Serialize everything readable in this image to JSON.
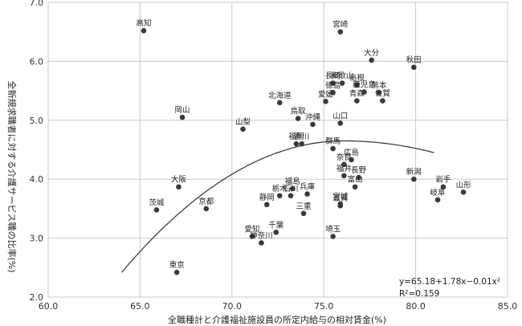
{
  "chart_data": {
    "type": "scatter",
    "xlabel": "全職種計と介護福祉施設員の所定内給与の相対賃金(%)",
    "ylabel": "全新規求職者に対する介護サービス職の比率(%)",
    "xlim": [
      60.0,
      85.0
    ],
    "ylim": [
      2.0,
      7.0
    ],
    "xticks": [
      "60.0",
      "65.0",
      "70.0",
      "75.0",
      "80.0",
      "85.0"
    ],
    "yticks": [
      "2.0",
      "3.0",
      "4.0",
      "5.0",
      "6.0",
      "7.0"
    ],
    "grid": true,
    "point_color": "#3a3a3a",
    "grid_color": "#c8c8c8",
    "trendline": {
      "type": "quadratic",
      "coefficients": [
        65.18,
        1.78,
        -0.01
      ],
      "x_range": [
        64.0,
        81.0
      ],
      "equation_label": "y=65.18+1.78x−0.01x²",
      "r2_label": "R²=0.159"
    },
    "points": [
      {
        "name": "高知",
        "x": 65.2,
        "y": 6.52
      },
      {
        "name": "宮崎",
        "x": 75.9,
        "y": 6.5
      },
      {
        "name": "大分",
        "x": 77.6,
        "y": 6.02
      },
      {
        "name": "秋田",
        "x": 79.9,
        "y": 5.9
      },
      {
        "name": "長崎",
        "x": 75.5,
        "y": 5.63
      },
      {
        "name": "和歌山",
        "x": 76.0,
        "y": 5.63
      },
      {
        "name": "徳島",
        "x": 75.5,
        "y": 5.47
      },
      {
        "name": "島根",
        "x": 76.8,
        "y": 5.6
      },
      {
        "name": "熊本",
        "x": 78.0,
        "y": 5.47
      },
      {
        "name": "鹿児島",
        "x": 77.2,
        "y": 5.48
      },
      {
        "name": "愛媛",
        "x": 75.1,
        "y": 5.32
      },
      {
        "name": "青森",
        "x": 76.8,
        "y": 5.33
      },
      {
        "name": "佐賀",
        "x": 78.2,
        "y": 5.33
      },
      {
        "name": "北海道",
        "x": 72.6,
        "y": 5.3
      },
      {
        "name": "鳥取",
        "x": 73.6,
        "y": 5.03
      },
      {
        "name": "岡山",
        "x": 67.3,
        "y": 5.05
      },
      {
        "name": "山口",
        "x": 75.9,
        "y": 4.95
      },
      {
        "name": "沖縄",
        "x": 74.4,
        "y": 4.93
      },
      {
        "name": "山梨",
        "x": 70.6,
        "y": 4.85
      },
      {
        "name": "福岡",
        "x": 73.5,
        "y": 4.6
      },
      {
        "name": "香川",
        "x": 73.8,
        "y": 4.6
      },
      {
        "name": "群馬",
        "x": 75.5,
        "y": 4.52
      },
      {
        "name": "広島",
        "x": 76.5,
        "y": 4.33
      },
      {
        "name": "奈良",
        "x": 76.1,
        "y": 4.25
      },
      {
        "name": "福井",
        "x": 76.1,
        "y": 4.06
      },
      {
        "name": "長野",
        "x": 76.9,
        "y": 4.03
      },
      {
        "name": "新潟",
        "x": 79.9,
        "y": 4.0
      },
      {
        "name": "岩手",
        "x": 81.5,
        "y": 3.87
      },
      {
        "name": "山形",
        "x": 82.6,
        "y": 3.78
      },
      {
        "name": "岐阜",
        "x": 81.2,
        "y": 3.65
      },
      {
        "name": "富山",
        "x": 76.7,
        "y": 3.87
      },
      {
        "name": "福島",
        "x": 73.3,
        "y": 3.84
      },
      {
        "name": "石川",
        "x": 73.2,
        "y": 3.72
      },
      {
        "name": "栃木",
        "x": 72.6,
        "y": 3.72
      },
      {
        "name": "兵庫",
        "x": 74.1,
        "y": 3.75
      },
      {
        "name": "大阪",
        "x": 67.1,
        "y": 3.87
      },
      {
        "name": "静岡",
        "x": 71.9,
        "y": 3.57
      },
      {
        "name": "滋賀",
        "x": 75.9,
        "y": 3.55
      },
      {
        "name": "宮城",
        "x": 75.9,
        "y": 3.58
      },
      {
        "name": "三重",
        "x": 73.9,
        "y": 3.42
      },
      {
        "name": "茨城",
        "x": 65.9,
        "y": 3.48
      },
      {
        "name": "京都",
        "x": 68.6,
        "y": 3.5
      },
      {
        "name": "千葉",
        "x": 72.4,
        "y": 3.1
      },
      {
        "name": "愛知",
        "x": 71.1,
        "y": 3.03
      },
      {
        "name": "埼玉",
        "x": 75.5,
        "y": 3.03
      },
      {
        "name": "神奈川",
        "x": 71.6,
        "y": 2.92
      },
      {
        "name": "東京",
        "x": 67.0,
        "y": 2.42
      }
    ]
  }
}
